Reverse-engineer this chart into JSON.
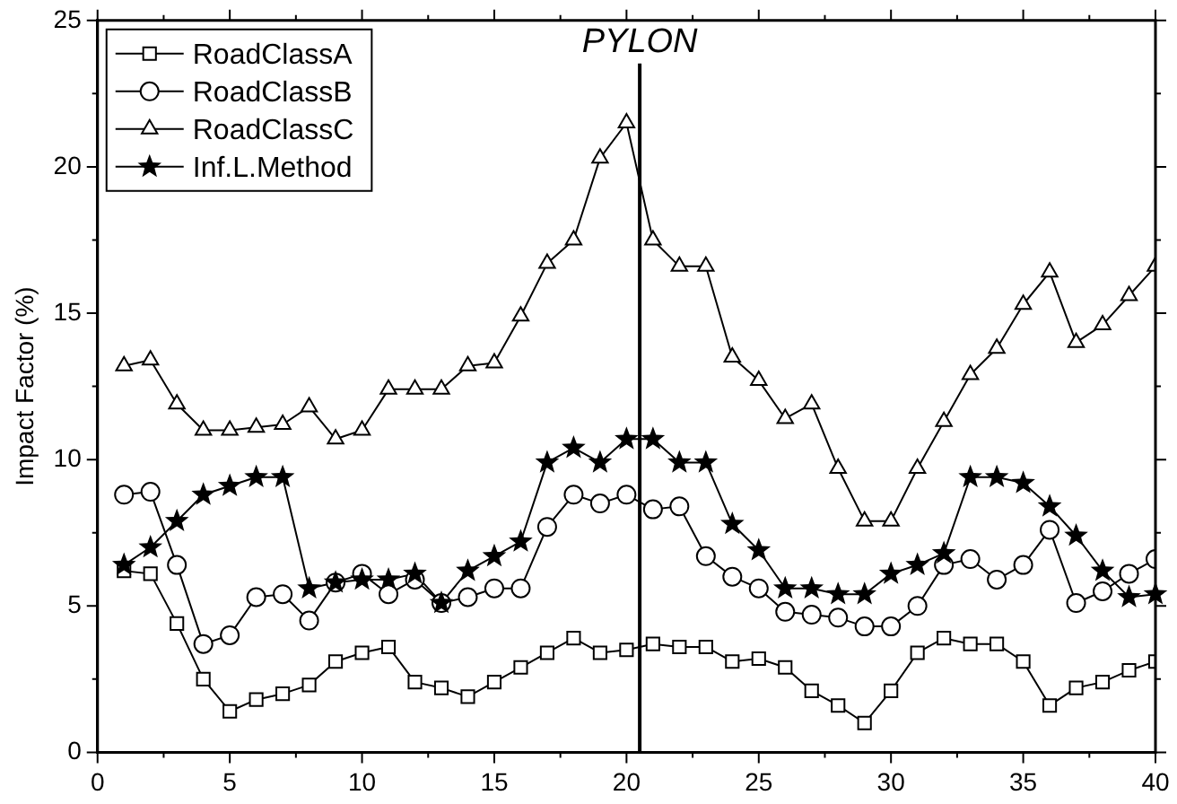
{
  "chart_data": {
    "type": "line",
    "ylabel": "Impact Factor (%)",
    "x": [
      1,
      2,
      3,
      4,
      5,
      6,
      7,
      8,
      9,
      10,
      11,
      12,
      13,
      14,
      15,
      16,
      17,
      18,
      19,
      20,
      21,
      22,
      23,
      24,
      25,
      26,
      27,
      28,
      29,
      30,
      31,
      32,
      33,
      34,
      35,
      36,
      37,
      38,
      39,
      40
    ],
    "series": [
      {
        "name": "RoadClassA",
        "color": "#000000",
        "marker": "square",
        "values": [
          6.2,
          6.1,
          4.4,
          2.5,
          1.4,
          1.8,
          2.0,
          2.3,
          3.1,
          3.4,
          3.6,
          2.4,
          2.2,
          1.9,
          2.4,
          2.9,
          3.4,
          3.9,
          3.4,
          3.5,
          3.7,
          3.6,
          3.6,
          3.1,
          3.2,
          2.9,
          2.1,
          1.6,
          1.0,
          2.1,
          3.4,
          3.9,
          3.7,
          3.7,
          3.1,
          1.6,
          2.2,
          2.4,
          2.8,
          3.1
        ]
      },
      {
        "name": "RoadClassB",
        "color": "#000000",
        "marker": "circle",
        "values": [
          8.8,
          8.9,
          6.4,
          3.7,
          4.0,
          5.3,
          5.4,
          4.5,
          5.8,
          6.1,
          5.4,
          5.9,
          5.1,
          5.3,
          5.6,
          5.6,
          7.7,
          8.8,
          8.5,
          8.8,
          8.3,
          8.4,
          6.7,
          6.0,
          5.6,
          4.8,
          4.7,
          4.6,
          4.3,
          4.3,
          5.0,
          6.4,
          6.6,
          5.9,
          6.4,
          7.6,
          5.1,
          5.5,
          6.1,
          6.6
        ]
      },
      {
        "name": "RoadClassC",
        "color": "#000000",
        "marker": "triangle",
        "values": [
          13.2,
          13.4,
          11.9,
          11.0,
          11.0,
          11.1,
          11.2,
          11.8,
          10.7,
          11.0,
          12.4,
          12.4,
          12.4,
          13.2,
          13.3,
          14.9,
          16.7,
          17.5,
          20.3,
          21.5,
          17.5,
          16.6,
          16.6,
          13.5,
          12.7,
          11.4,
          11.9,
          9.7,
          7.9,
          7.9,
          9.7,
          11.3,
          12.9,
          13.8,
          15.3,
          16.4,
          14.0,
          14.6,
          15.6,
          16.6
        ]
      },
      {
        "name": "Inf.L.Method",
        "color": "#000000",
        "marker": "star",
        "values": [
          6.4,
          7.0,
          7.9,
          8.8,
          9.1,
          9.4,
          9.4,
          5.6,
          5.8,
          5.9,
          5.9,
          6.1,
          5.1,
          6.2,
          6.7,
          7.2,
          9.9,
          10.4,
          9.9,
          10.7,
          10.7,
          9.9,
          9.9,
          7.8,
          6.9,
          5.6,
          5.6,
          5.4,
          5.4,
          6.1,
          6.4,
          6.8,
          9.4,
          9.4,
          9.2,
          8.4,
          7.4,
          6.2,
          5.3,
          5.4
        ]
      }
    ],
    "xlim": [
      0,
      40
    ],
    "xticks": [
      0,
      5,
      10,
      15,
      20,
      25,
      30,
      35,
      40
    ],
    "ylim": [
      0,
      25
    ],
    "yticks": [
      0,
      5,
      10,
      15,
      20,
      25
    ],
    "ref_lines": [
      {
        "axis": "x",
        "value": 20.5,
        "label": "PYLON",
        "color": "#000000"
      }
    ],
    "grid": false,
    "legend": "top left",
    "line_style": "solid"
  }
}
